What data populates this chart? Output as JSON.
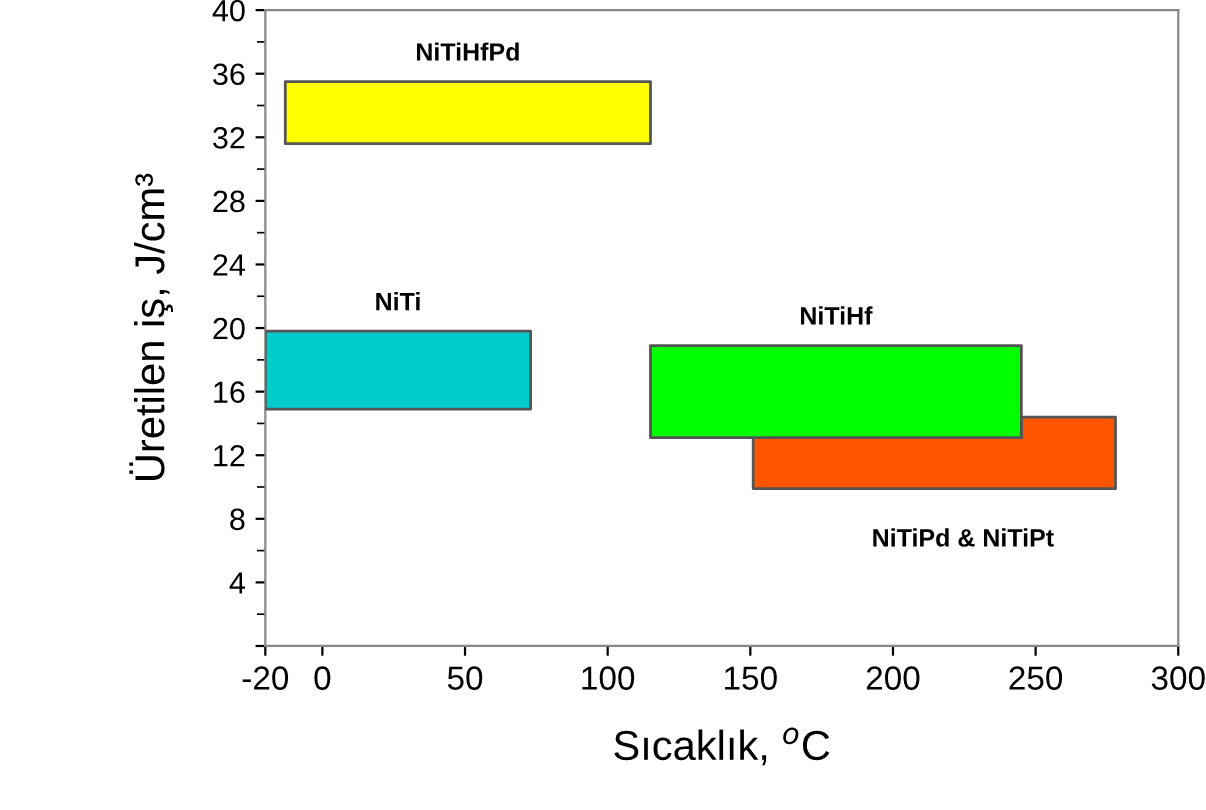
{
  "chart_data": {
    "type": "area",
    "xlabel": "Sıcaklık, $^{o}$C",
    "ylabel": "Üretilen iş, J/cm³",
    "xlim": [
      -20,
      300
    ],
    "xticks": [
      -20,
      0,
      50,
      100,
      150,
      200,
      250,
      300
    ],
    "ylim": [
      0,
      40
    ],
    "yticks": [
      {
        "value": 0,
        "label": null
      },
      4,
      8,
      12,
      16,
      20,
      24,
      28,
      32,
      36,
      40
    ],
    "grid": false,
    "legend": false,
    "series": [
      {
        "name": "NiTiHfPd",
        "color": "#ffff00",
        "x": [
          -13,
          115,
          115,
          -13,
          -13
        ],
        "values": [
          35.5,
          35.5,
          31.6,
          31.6,
          35.5
        ]
      },
      {
        "name": "NiTi",
        "color": "#00cccc",
        "x": [
          -20,
          73,
          73,
          -20,
          -20
        ],
        "values": [
          19.8,
          19.8,
          14.9,
          14.9,
          19.8
        ]
      },
      {
        "name": "NiTiHf",
        "color": "#00ff00",
        "x": [
          115,
          245,
          245,
          115,
          115
        ],
        "values": [
          18.9,
          18.9,
          13.1,
          13.1,
          18.9
        ]
      },
      {
        "name": "NiTiPd & NiTiPt",
        "color": "#ff5500",
        "x": [
          245,
          278,
          278,
          151,
          151,
          245,
          245
        ],
        "values": [
          14.4,
          14.4,
          9.9,
          9.9,
          13.1,
          13.1,
          14.4
        ]
      }
    ]
  }
}
